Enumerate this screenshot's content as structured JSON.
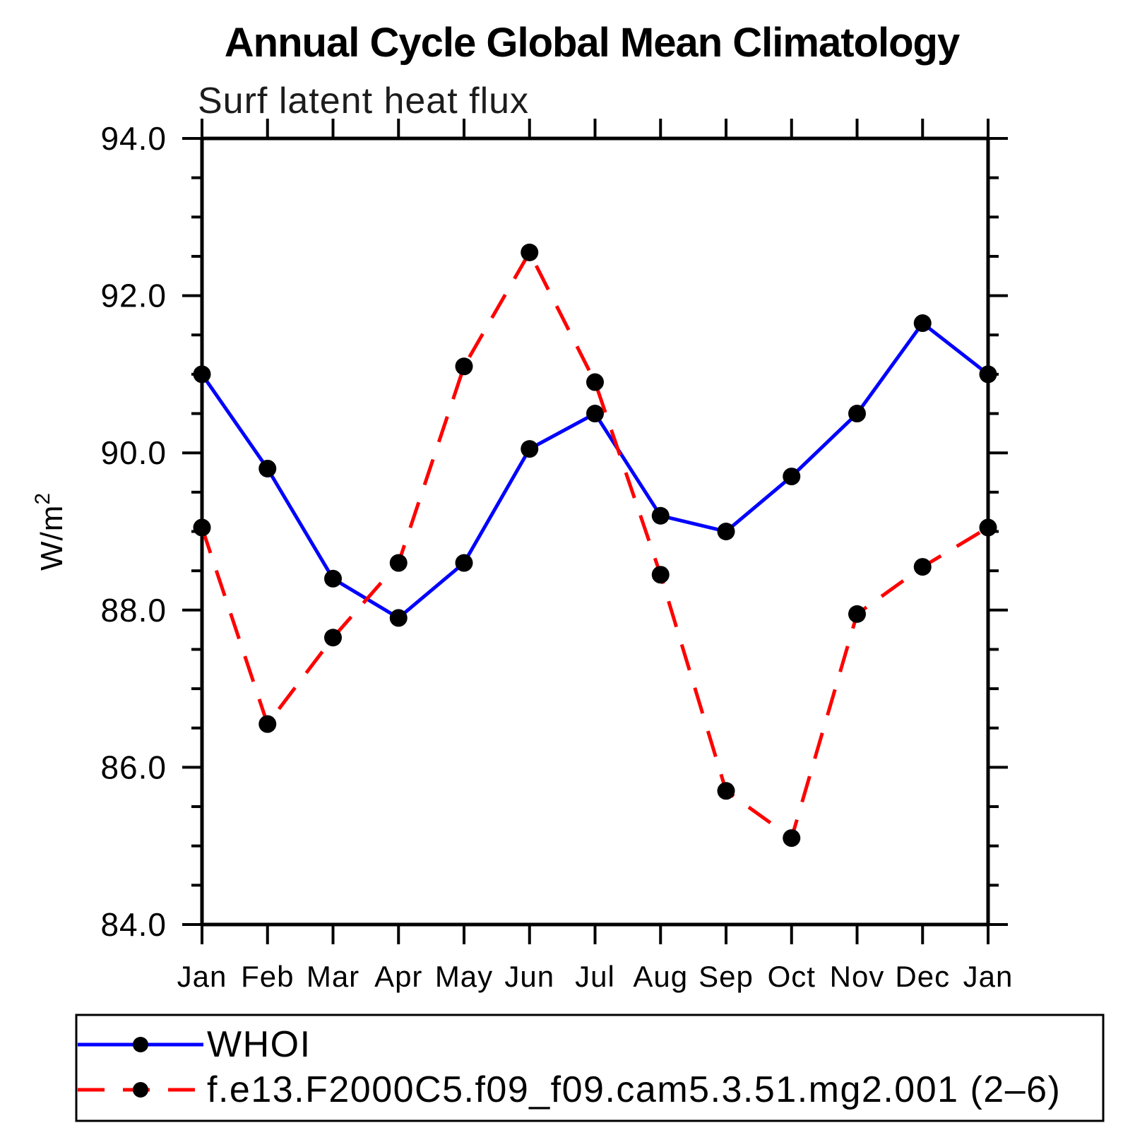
{
  "header": {
    "title": "Annual Cycle Global Mean Climatology",
    "subtitle": "Surf latent heat flux"
  },
  "axes": {
    "ylabel": "W/m²",
    "ylabel_base": "W/m",
    "ylabel_sup": "2",
    "ytick_labels": [
      "94.0",
      "92.0",
      "90.0",
      "88.0",
      "86.0",
      "84.0"
    ],
    "xtick_labels": [
      "Jan",
      "Feb",
      "Mar",
      "Apr",
      "May",
      "Jun",
      "Jul",
      "Aug",
      "Sep",
      "Oct",
      "Nov",
      "Dec",
      "Jan"
    ]
  },
  "legend": {
    "items": [
      {
        "label": "WHOI",
        "color": "#0000ff",
        "style": "solid",
        "marker": "filled-circle"
      },
      {
        "label": "f.e13.F2000C5.f09_f09.cam5.3.51.mg2.001 (2–6)",
        "color": "#ff0000",
        "style": "dashed",
        "marker": "filled-circle"
      }
    ]
  },
  "chart_data": {
    "type": "line",
    "title": "Annual Cycle Global Mean Climatology",
    "subtitle": "Surf latent heat flux",
    "xlabel": "",
    "ylabel": "W/m²",
    "categories": [
      "Jan",
      "Feb",
      "Mar",
      "Apr",
      "May",
      "Jun",
      "Jul",
      "Aug",
      "Sep",
      "Oct",
      "Nov",
      "Dec",
      "Jan"
    ],
    "series": [
      {
        "name": "WHOI",
        "color": "#0000ff",
        "style": "solid",
        "marker": "filled-circle",
        "values": [
          91.0,
          89.8,
          88.4,
          87.9,
          88.6,
          90.05,
          90.5,
          89.2,
          89.0,
          89.7,
          90.5,
          91.65,
          91.0
        ]
      },
      {
        "name": "f.e13.F2000C5.f09_f09.cam5.3.51.mg2.001 (2–6)",
        "color": "#ff0000",
        "style": "dashed",
        "marker": "filled-circle",
        "values": [
          89.05,
          86.55,
          87.65,
          88.6,
          91.1,
          92.55,
          90.9,
          88.45,
          85.7,
          85.1,
          87.95,
          88.55,
          89.05
        ]
      }
    ],
    "ylim": [
      84.0,
      94.0
    ],
    "ytick_major_step": 2.0,
    "ytick_minor_step": 0.5,
    "grid": false,
    "legend_position": "bottom"
  }
}
